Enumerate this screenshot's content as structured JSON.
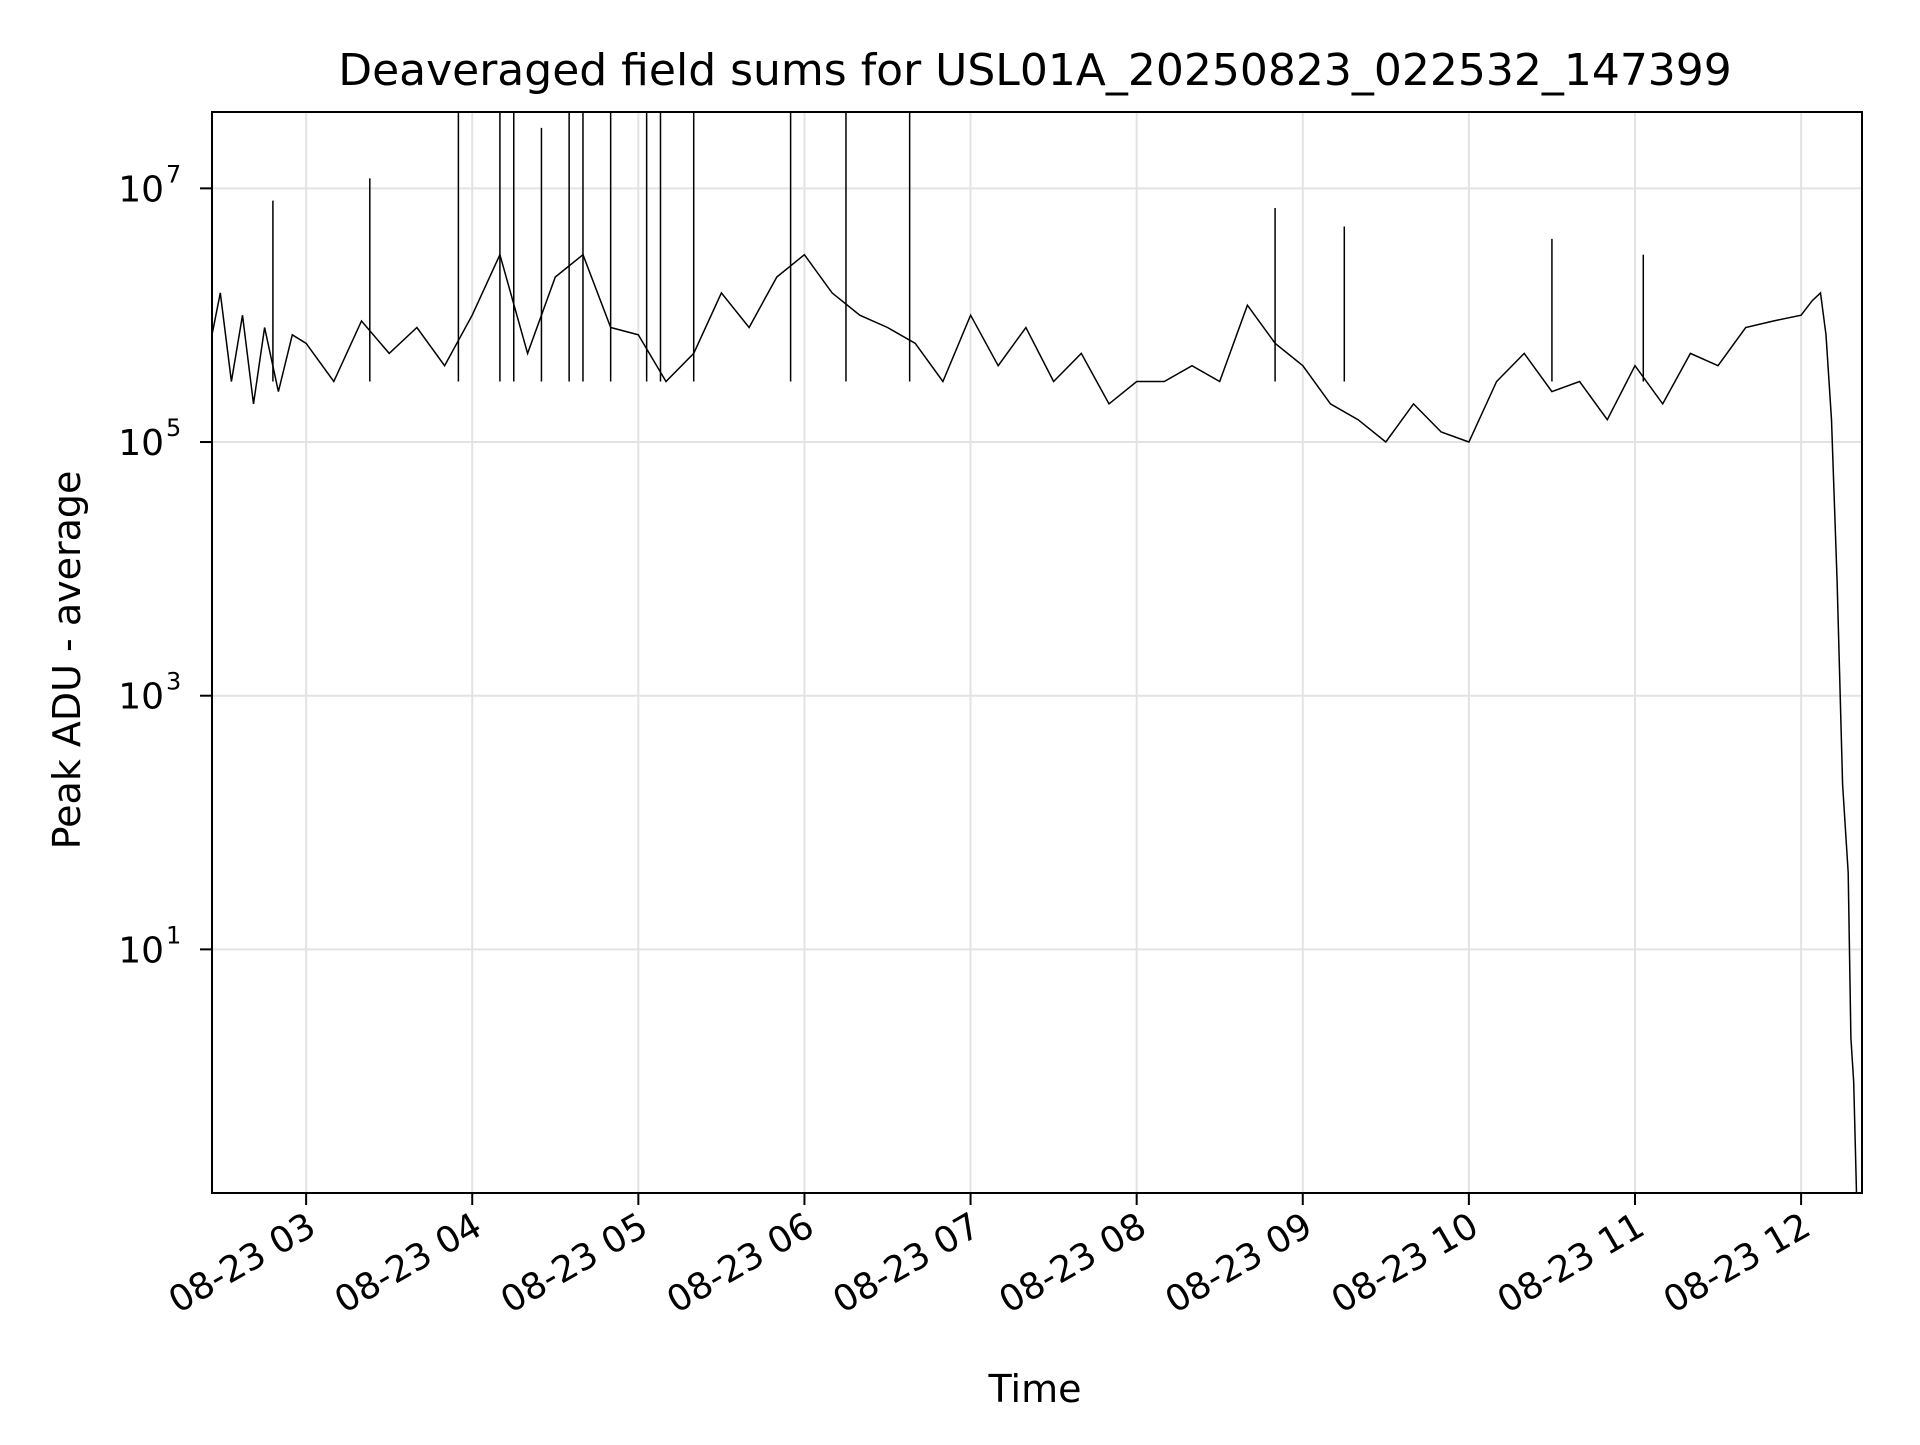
{
  "chart_data": {
    "type": "line",
    "title": "Deaveraged field sums for USL01A_20250823_022532_147399",
    "xlabel": "Time",
    "ylabel": "Peak ADU - average",
    "xscale": "time",
    "yscale": "log",
    "grid": true,
    "legend": "none",
    "xlim": [
      "2025-08-23 02:26",
      "2025-08-23 12:22"
    ],
    "ylim": [
      0.12,
      40000000
    ],
    "x_ticks": [
      {
        "value": "2025-08-23 03:00",
        "label": "08-23 03"
      },
      {
        "value": "2025-08-23 04:00",
        "label": "08-23 04"
      },
      {
        "value": "2025-08-23 05:00",
        "label": "08-23 05"
      },
      {
        "value": "2025-08-23 06:00",
        "label": "08-23 06"
      },
      {
        "value": "2025-08-23 07:00",
        "label": "08-23 07"
      },
      {
        "value": "2025-08-23 08:00",
        "label": "08-23 08"
      },
      {
        "value": "2025-08-23 09:00",
        "label": "08-23 09"
      },
      {
        "value": "2025-08-23 10:00",
        "label": "08-23 10"
      },
      {
        "value": "2025-08-23 11:00",
        "label": "08-23 11"
      },
      {
        "value": "2025-08-23 12:00",
        "label": "08-23 12"
      }
    ],
    "y_ticks": [
      {
        "value": 10,
        "base": "10",
        "exp": "1"
      },
      {
        "value": 1000,
        "base": "10",
        "exp": "3"
      },
      {
        "value": 100000,
        "base": "10",
        "exp": "5"
      },
      {
        "value": 10000000,
        "base": "10",
        "exp": "7"
      }
    ],
    "series": [
      {
        "color": "#000000",
        "x": [
          "2025-08-23 02:26",
          "2025-08-23 02:29",
          "2025-08-23 02:33",
          "2025-08-23 02:37",
          "2025-08-23 02:41",
          "2025-08-23 02:45",
          "2025-08-23 02:50",
          "2025-08-23 02:55",
          "2025-08-23 03:00",
          "2025-08-23 03:10",
          "2025-08-23 03:20",
          "2025-08-23 03:30",
          "2025-08-23 03:40",
          "2025-08-23 03:50",
          "2025-08-23 04:00",
          "2025-08-23 04:10",
          "2025-08-23 04:20",
          "2025-08-23 04:30",
          "2025-08-23 04:40",
          "2025-08-23 04:50",
          "2025-08-23 05:00",
          "2025-08-23 05:10",
          "2025-08-23 05:20",
          "2025-08-23 05:30",
          "2025-08-23 05:40",
          "2025-08-23 05:50",
          "2025-08-23 06:00",
          "2025-08-23 06:10",
          "2025-08-23 06:20",
          "2025-08-23 06:30",
          "2025-08-23 06:40",
          "2025-08-23 06:50",
          "2025-08-23 07:00",
          "2025-08-23 07:10",
          "2025-08-23 07:20",
          "2025-08-23 07:30",
          "2025-08-23 07:40",
          "2025-08-23 07:50",
          "2025-08-23 08:00",
          "2025-08-23 08:10",
          "2025-08-23 08:20",
          "2025-08-23 08:30",
          "2025-08-23 08:40",
          "2025-08-23 08:50",
          "2025-08-23 09:00",
          "2025-08-23 09:10",
          "2025-08-23 09:20",
          "2025-08-23 09:30",
          "2025-08-23 09:40",
          "2025-08-23 09:50",
          "2025-08-23 10:00",
          "2025-08-23 10:10",
          "2025-08-23 10:20",
          "2025-08-23 10:30",
          "2025-08-23 10:40",
          "2025-08-23 10:50",
          "2025-08-23 11:00",
          "2025-08-23 11:10",
          "2025-08-23 11:20",
          "2025-08-23 11:30",
          "2025-08-23 11:40",
          "2025-08-23 11:50",
          "2025-08-23 12:00",
          "2025-08-23 12:04",
          "2025-08-23 12:07",
          "2025-08-23 12:09",
          "2025-08-23 12:11",
          "2025-08-23 12:13",
          "2025-08-23 12:15",
          "2025-08-23 12:17",
          "2025-08-23 12:18",
          "2025-08-23 12:19",
          "2025-08-23 12:20"
        ],
        "y": [
          700000,
          1500000,
          300000,
          1000000,
          200000,
          800000,
          250000,
          700000,
          600000,
          300000,
          900000,
          500000,
          800000,
          400000,
          1000000,
          3000000,
          500000,
          2000000,
          3000000,
          800000,
          700000,
          300000,
          500000,
          1500000,
          800000,
          2000000,
          3000000,
          1500000,
          1000000,
          800000,
          600000,
          300000,
          1000000,
          400000,
          800000,
          300000,
          500000,
          200000,
          300000,
          300000,
          400000,
          300000,
          1200000,
          600000,
          400000,
          200000,
          150000,
          100000,
          200000,
          120000,
          100000,
          300000,
          500000,
          250000,
          300000,
          150000,
          400000,
          200000,
          500000,
          400000,
          800000,
          900000,
          1000000,
          1300000,
          1500000,
          700000,
          150000,
          8000,
          200,
          40,
          2,
          0.9,
          0.12
        ],
        "spikes": [
          {
            "x": "2025-08-23 02:48",
            "y": 8000000
          },
          {
            "x": "2025-08-23 03:23",
            "y": 12000000
          },
          {
            "x": "2025-08-23 03:55",
            "y": 50000000
          },
          {
            "x": "2025-08-23 04:10",
            "y": 150000000
          },
          {
            "x": "2025-08-23 04:15",
            "y": 130000000
          },
          {
            "x": "2025-08-23 04:25",
            "y": 30000000
          },
          {
            "x": "2025-08-23 04:35",
            "y": 140000000
          },
          {
            "x": "2025-08-23 04:40",
            "y": 100000000
          },
          {
            "x": "2025-08-23 04:50",
            "y": 60000000
          },
          {
            "x": "2025-08-23 05:03",
            "y": 150000000
          },
          {
            "x": "2025-08-23 05:08",
            "y": 100000000
          },
          {
            "x": "2025-08-23 05:20",
            "y": 80000000
          },
          {
            "x": "2025-08-23 05:55",
            "y": 60000000
          },
          {
            "x": "2025-08-23 06:15",
            "y": 50000000
          },
          {
            "x": "2025-08-23 06:38",
            "y": 40000000
          },
          {
            "x": "2025-08-23 08:50",
            "y": 7000000
          },
          {
            "x": "2025-08-23 09:15",
            "y": 5000000
          },
          {
            "x": "2025-08-23 10:30",
            "y": 4000000
          },
          {
            "x": "2025-08-23 11:03",
            "y": 3000000
          }
        ]
      }
    ]
  }
}
